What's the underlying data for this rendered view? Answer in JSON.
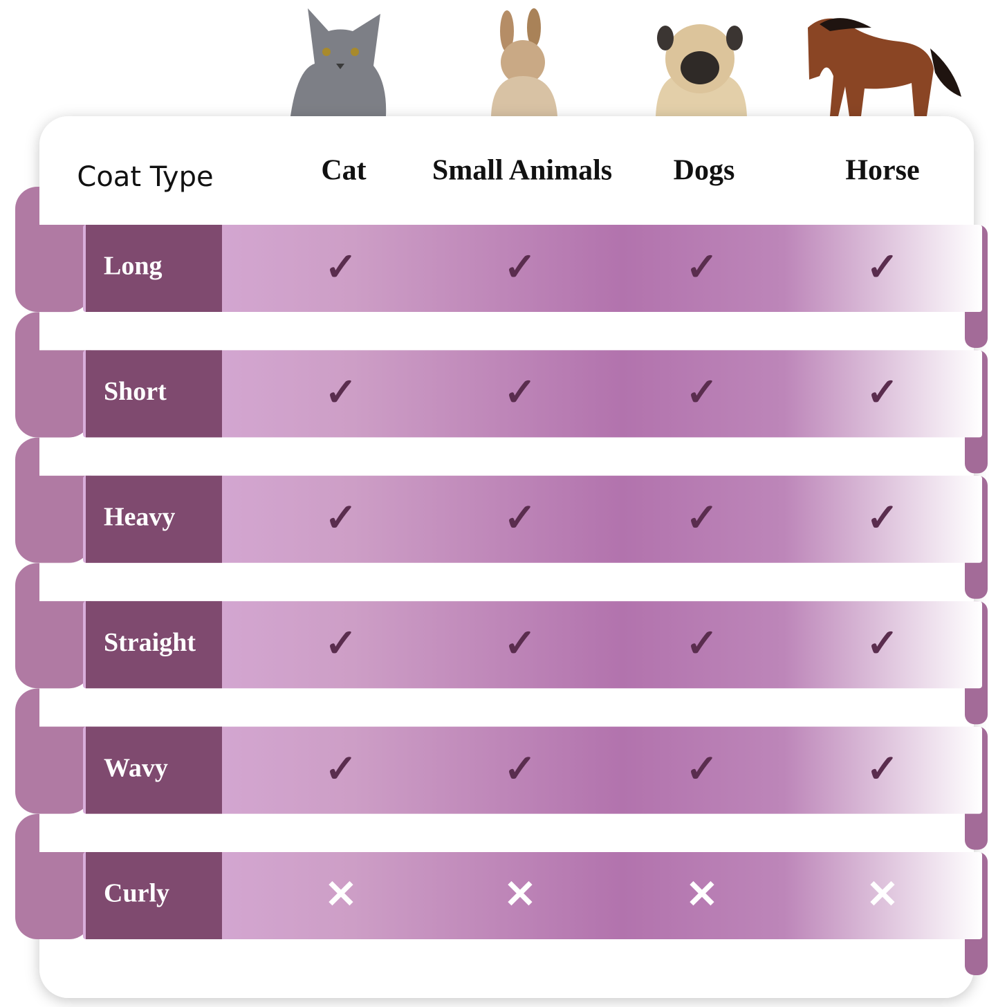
{
  "header": {
    "label": "Coat Type",
    "columns": [
      "Cat",
      "Small Animals",
      "Dogs",
      "Horse"
    ]
  },
  "rows": [
    {
      "label": "Long",
      "cells": [
        "✓",
        "✓",
        "✓",
        "✓"
      ]
    },
    {
      "label": "Short",
      "cells": [
        "✓",
        "✓",
        "✓",
        "✓"
      ]
    },
    {
      "label": "Heavy",
      "cells": [
        "✓",
        "✓",
        "✓",
        "✓"
      ]
    },
    {
      "label": "Straight",
      "cells": [
        "✓",
        "✓",
        "✓",
        "✓"
      ]
    },
    {
      "label": "Wavy",
      "cells": [
        "✓",
        "✓",
        "✓",
        "✓"
      ]
    },
    {
      "label": "Curly",
      "cells": [
        "✕",
        "✕",
        "✕",
        "✕"
      ]
    }
  ]
}
